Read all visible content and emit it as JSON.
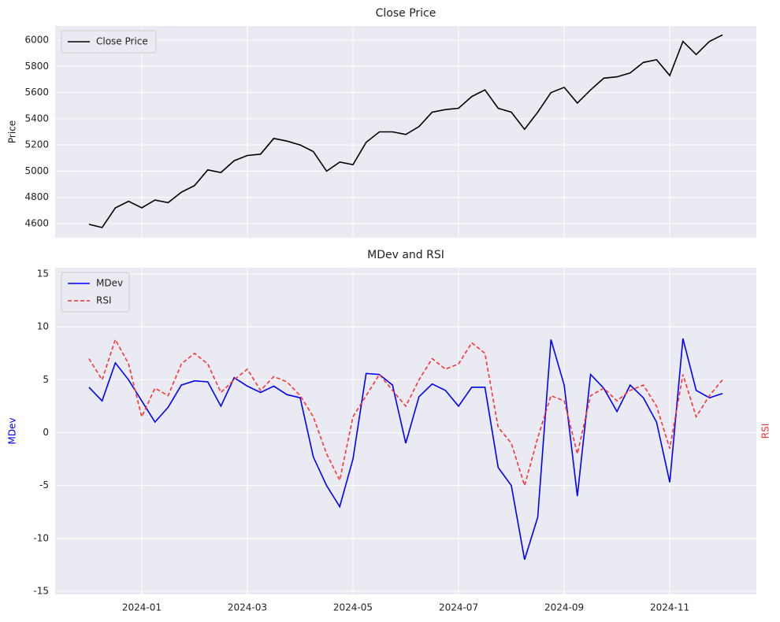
{
  "chart_data": [
    {
      "type": "line",
      "title": "Close Price",
      "ylabel": "Price",
      "x": [
        -1,
        -0.75,
        -0.5,
        -0.25,
        0,
        0.25,
        0.5,
        0.75,
        1,
        1.25,
        1.5,
        1.75,
        2,
        2.25,
        2.5,
        2.75,
        3,
        3.25,
        3.5,
        3.75,
        4,
        4.25,
        4.5,
        4.75,
        5,
        5.25,
        5.5,
        5.75,
        6,
        6.25,
        6.5,
        6.75,
        7,
        7.25,
        7.5,
        7.75,
        8,
        8.25,
        8.5,
        8.75,
        9,
        9.25,
        9.5,
        9.75,
        10,
        10.25,
        10.5,
        10.75,
        11
      ],
      "series": [
        {
          "name": "Close Price",
          "color": "#000000",
          "dash": false,
          "values": [
            4595,
            4570,
            4720,
            4770,
            4720,
            4780,
            4760,
            4840,
            4890,
            5010,
            4990,
            5080,
            5120,
            5130,
            5250,
            5230,
            5200,
            5150,
            5000,
            5070,
            5050,
            5220,
            5300,
            5300,
            5280,
            5340,
            5450,
            5470,
            5480,
            5570,
            5620,
            5480,
            5450,
            5320,
            5450,
            5600,
            5640,
            5520,
            5620,
            5710,
            5720,
            5750,
            5830,
            5850,
            5730,
            5990,
            5890,
            5990,
            6040
          ]
        }
      ],
      "xlim": [
        -1.64,
        11.64
      ],
      "ylim": [
        4492,
        6108
      ],
      "yticks": [
        4600,
        4800,
        5000,
        5200,
        5400,
        5600,
        5800,
        6000
      ],
      "grid": true,
      "legend": "upper left"
    },
    {
      "type": "line",
      "title": "MDev and RSI",
      "ylabel": "MDev",
      "y2label": "RSI",
      "x": [
        -1,
        -0.75,
        -0.5,
        -0.25,
        0,
        0.25,
        0.5,
        0.75,
        1,
        1.25,
        1.5,
        1.75,
        2,
        2.25,
        2.5,
        2.75,
        3,
        3.25,
        3.5,
        3.75,
        4,
        4.25,
        4.5,
        4.75,
        5,
        5.25,
        5.5,
        5.75,
        6,
        6.25,
        6.5,
        6.75,
        7,
        7.25,
        7.5,
        7.75,
        8,
        8.25,
        8.5,
        8.75,
        9,
        9.25,
        9.5,
        9.75,
        10,
        10.25,
        10.5,
        10.75,
        11
      ],
      "series": [
        {
          "name": "MDev",
          "color": "#0000ff",
          "dash": false,
          "values": [
            4.3,
            3.0,
            6.6,
            5.0,
            3.0,
            1.0,
            2.4,
            4.5,
            4.9,
            4.8,
            2.5,
            5.2,
            4.4,
            3.8,
            4.4,
            3.6,
            3.3,
            -2.3,
            -5.0,
            -7.0,
            -2.5,
            5.6,
            5.5,
            4.5,
            -1.0,
            3.4,
            4.6,
            4.0,
            2.5,
            4.3,
            4.3,
            -3.3,
            -5.0,
            -12.0,
            -8.0,
            8.8,
            4.5,
            -6.0,
            5.5,
            4.2,
            2.0,
            4.5,
            3.3,
            1.0,
            -4.7,
            8.9,
            4.0,
            3.3,
            3.7
          ]
        },
        {
          "name": "RSI",
          "color": "#ff3333",
          "dash": true,
          "values": [
            7.0,
            5.0,
            8.8,
            6.5,
            1.5,
            4.2,
            3.5,
            6.5,
            7.5,
            6.5,
            3.8,
            5.0,
            6.0,
            4.0,
            5.3,
            4.8,
            3.5,
            1.5,
            -2.0,
            -4.5,
            1.5,
            3.5,
            5.5,
            4.0,
            2.5,
            5.0,
            7.0,
            6.0,
            6.5,
            8.5,
            7.5,
            0.5,
            -1.0,
            -5.0,
            -0.5,
            3.5,
            3.0,
            -2.0,
            3.5,
            4.2,
            3.0,
            4.0,
            4.5,
            2.5,
            -1.5,
            5.5,
            1.5,
            3.5,
            5.0
          ]
        }
      ],
      "xlim": [
        -1.64,
        11.64
      ],
      "ylim": [
        -15.3,
        15.6
      ],
      "xticks": [
        {
          "value": 0,
          "label": "2024-01"
        },
        {
          "value": 2,
          "label": "2024-03"
        },
        {
          "value": 4,
          "label": "2024-05"
        },
        {
          "value": 6,
          "label": "2024-07"
        },
        {
          "value": 8,
          "label": "2024-09"
        },
        {
          "value": 10,
          "label": "2024-11"
        }
      ],
      "yticks": [
        -15,
        -10,
        -5,
        0,
        5,
        10,
        15
      ],
      "grid": true,
      "legend": "upper left"
    }
  ]
}
